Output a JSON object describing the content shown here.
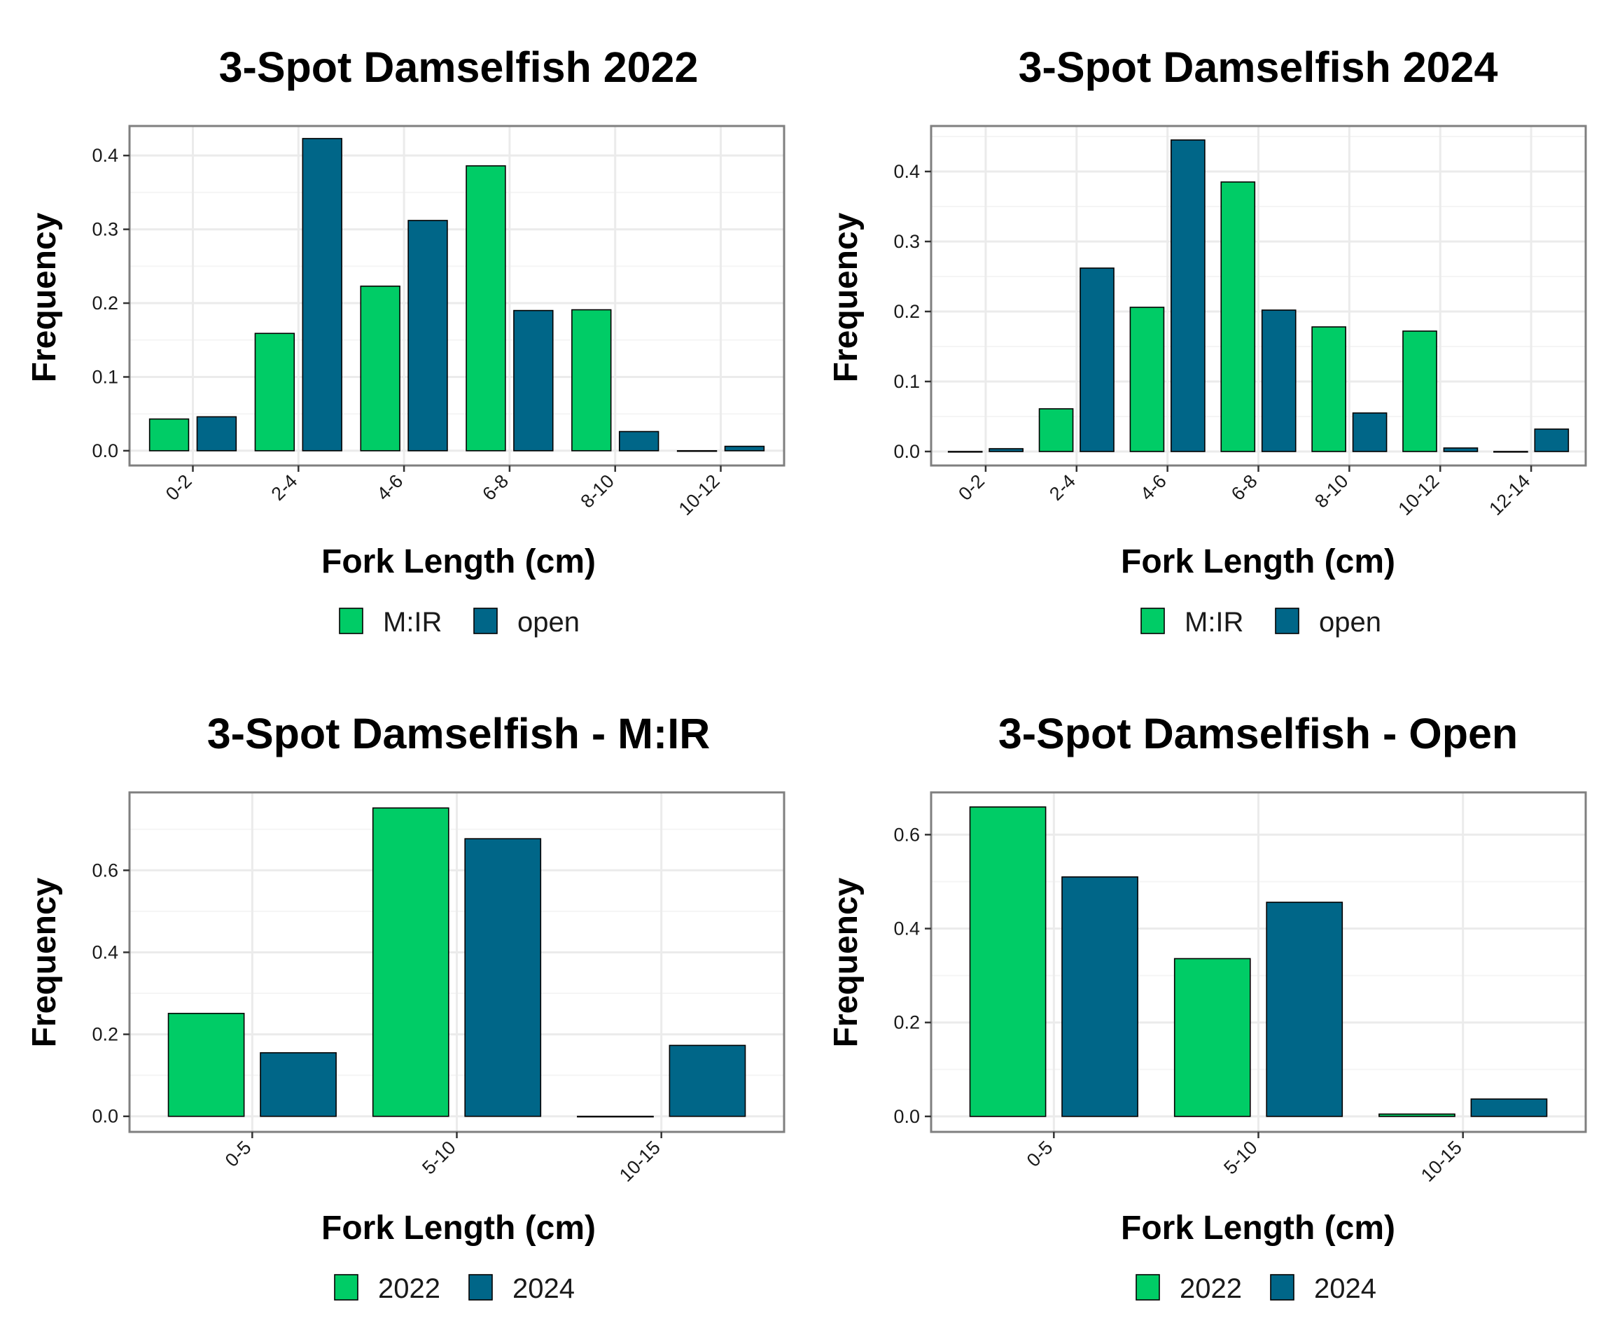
{
  "colors": {
    "green": "#00cc66",
    "blue": "#006688",
    "panel_border": "#7f7f7f",
    "grid_major": "#ebebeb",
    "grid_minor": "#f5f5f5"
  },
  "chart_data": [
    {
      "type": "bar",
      "title": "3-Spot Damselfish 2022",
      "xlabel": "Fork Length (cm)",
      "ylabel": "Frequency",
      "categories": [
        "0-2",
        "2-4",
        "4-6",
        "6-8",
        "8-10",
        "10-12"
      ],
      "series": [
        {
          "name": "M:IR",
          "color": "#00cc66",
          "values": [
            0.043,
            0.159,
            0.223,
            0.386,
            0.191,
            0.0
          ]
        },
        {
          "name": "open",
          "color": "#006688",
          "values": [
            0.046,
            0.423,
            0.312,
            0.19,
            0.026,
            0.006
          ]
        }
      ],
      "ylim": [
        -0.02,
        0.44
      ],
      "yticks": [
        0.0,
        0.1,
        0.2,
        0.3,
        0.4
      ],
      "ytick_labels": [
        "0.0",
        "0.1",
        "0.2",
        "0.3",
        "0.4"
      ],
      "legend": "bottom",
      "grid": true
    },
    {
      "type": "bar",
      "title": "3-Spot Damselfish 2024",
      "xlabel": "Fork Length (cm)",
      "ylabel": "Frequency",
      "categories": [
        "0-2",
        "2-4",
        "4-6",
        "6-8",
        "8-10",
        "10-12",
        "12-14"
      ],
      "series": [
        {
          "name": "M:IR",
          "color": "#00cc66",
          "values": [
            0.0,
            0.061,
            0.206,
            0.385,
            0.178,
            0.172,
            0.0
          ]
        },
        {
          "name": "open",
          "color": "#006688",
          "values": [
            0.004,
            0.262,
            0.445,
            0.202,
            0.055,
            0.005,
            0.032
          ]
        }
      ],
      "ylim": [
        -0.02,
        0.465
      ],
      "yticks": [
        0.0,
        0.1,
        0.2,
        0.3,
        0.4
      ],
      "ytick_labels": [
        "0.0",
        "0.1",
        "0.2",
        "0.3",
        "0.4"
      ],
      "legend": "bottom",
      "grid": true
    },
    {
      "type": "bar",
      "title": "3-Spot Damselfish - M:IR",
      "xlabel": "Fork Length (cm)",
      "ylabel": "Frequency",
      "categories": [
        "0-5",
        "5-10",
        "10-15"
      ],
      "series": [
        {
          "name": "2022",
          "color": "#00cc66",
          "values": [
            0.251,
            0.752,
            0.0
          ]
        },
        {
          "name": "2024",
          "color": "#006688",
          "values": [
            0.155,
            0.677,
            0.173
          ]
        }
      ],
      "ylim": [
        -0.038,
        0.79
      ],
      "yticks": [
        0.0,
        0.2,
        0.4,
        0.6
      ],
      "ytick_labels": [
        "0.0",
        "0.2",
        "0.4",
        "0.6"
      ],
      "legend": "bottom",
      "grid": true
    },
    {
      "type": "bar",
      "title": "3-Spot Damselfish - Open",
      "xlabel": "Fork Length (cm)",
      "ylabel": "Frequency",
      "categories": [
        "0-5",
        "5-10",
        "10-15"
      ],
      "series": [
        {
          "name": "2022",
          "color": "#00cc66",
          "values": [
            0.659,
            0.336,
            0.005
          ]
        },
        {
          "name": "2024",
          "color": "#006688",
          "values": [
            0.51,
            0.456,
            0.037
          ]
        }
      ],
      "ylim": [
        -0.033,
        0.69
      ],
      "yticks": [
        0.0,
        0.2,
        0.4,
        0.6
      ],
      "ytick_labels": [
        "0.0",
        "0.2",
        "0.4",
        "0.6"
      ],
      "legend": "bottom",
      "grid": true
    }
  ]
}
